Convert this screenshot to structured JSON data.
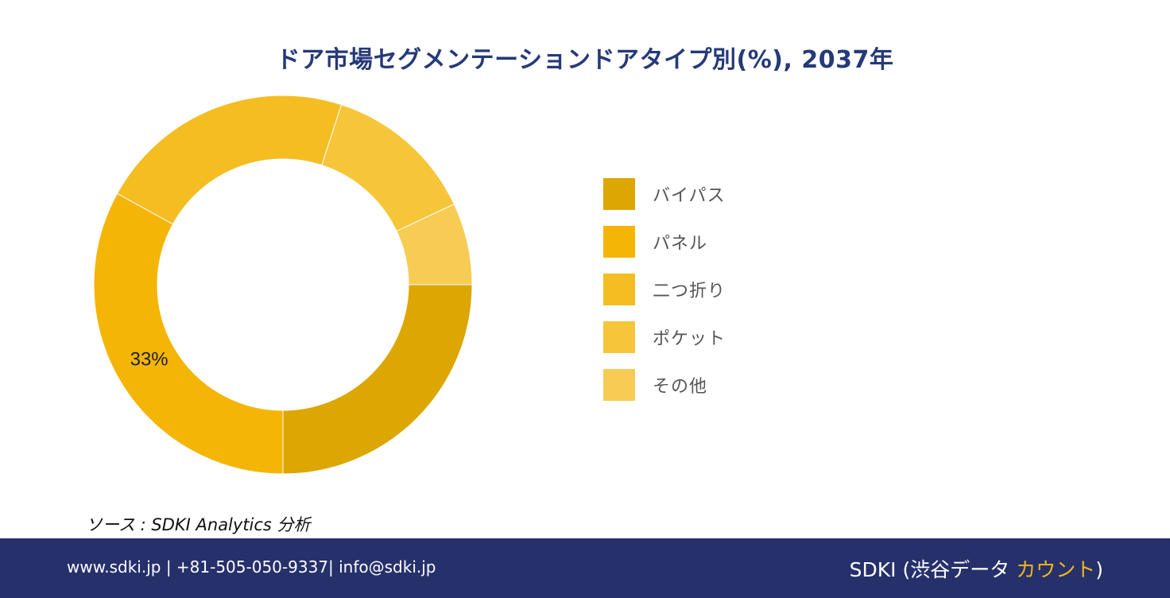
{
  "title": "ドア市場セグメンテーションドアタイプ別(%), 2037年",
  "chart_data": {
    "type": "pie",
    "title": "ドア市場セグメンテーションドアタイプ別(%), 2037年",
    "labels": [
      "バイパス",
      "パネル",
      "二つ折り",
      "ポケット",
      "その他"
    ],
    "values": [
      25,
      33,
      22,
      13,
      7
    ],
    "colors": [
      "#dca603",
      "#f4b506",
      "#f4bd22",
      "#f6c53a",
      "#f6cc54"
    ],
    "data_labels": [
      "",
      "33%",
      "",
      "",
      ""
    ],
    "donut": true,
    "legend_position": "right"
  },
  "source": "ソース : SDKI Analytics 分析",
  "footer": {
    "contact": "www.sdki.jp | +81-505-050-9337| info@sdki.jp",
    "brand_prefix": "SDKI (渋谷データ ",
    "brand_accent": "カウント",
    "brand_suffix": ")"
  }
}
